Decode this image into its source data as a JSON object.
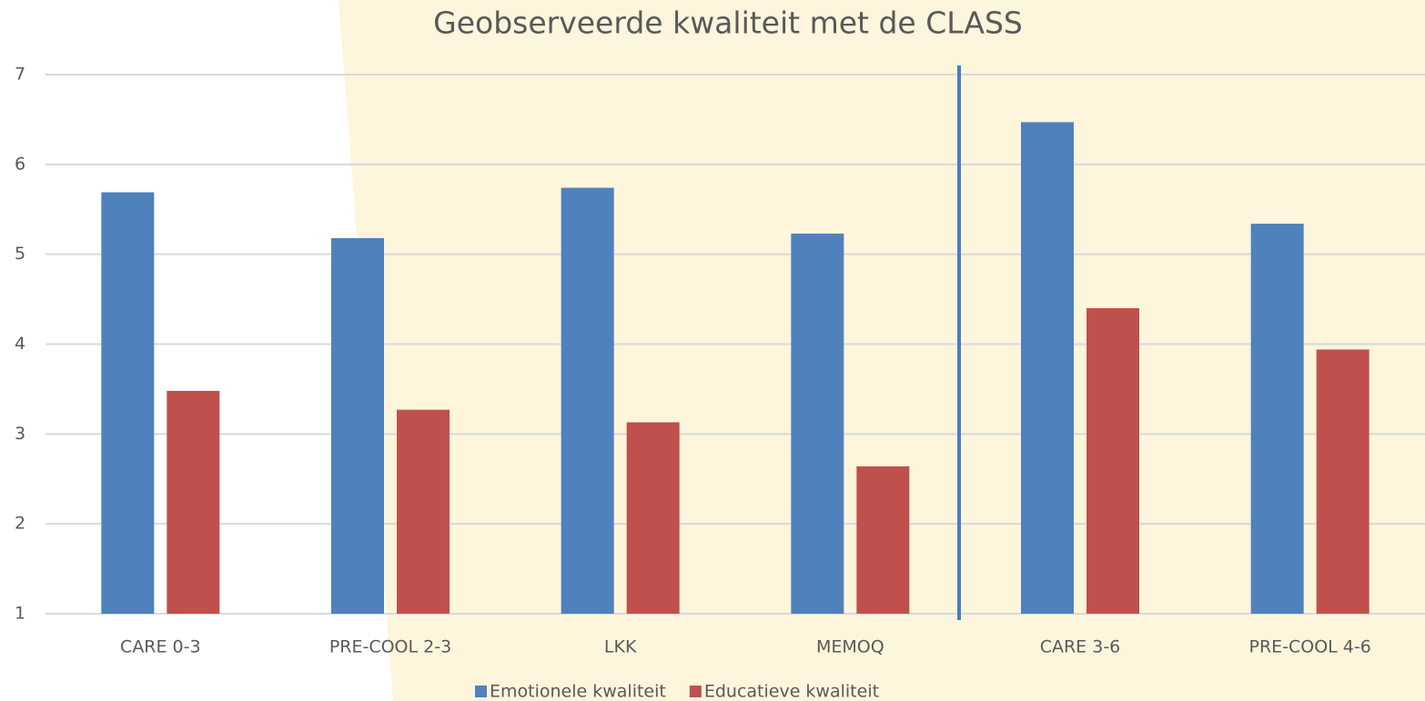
{
  "chart_data": {
    "type": "bar",
    "title": "Geobserveerde kwaliteit met de CLASS",
    "categories": [
      "CARE 0-3",
      "PRE-COOL 2-3",
      "LKK",
      "MEMOQ",
      "CARE 3-6",
      "PRE-COOL 4-6"
    ],
    "series": [
      {
        "name": "Emotionele kwaliteit",
        "color": "#4f81bd",
        "values": [
          5.69,
          5.18,
          5.74,
          5.23,
          6.47,
          5.34
        ]
      },
      {
        "name": "Educatieve kwaliteit",
        "color": "#c0504d",
        "values": [
          3.48,
          3.27,
          3.13,
          2.64,
          4.4,
          3.94
        ]
      }
    ],
    "ylim": [
      1,
      7
    ],
    "yticks": [
      1,
      2,
      3,
      4,
      5,
      6,
      7
    ],
    "grid": true,
    "legend": "bottom"
  }
}
